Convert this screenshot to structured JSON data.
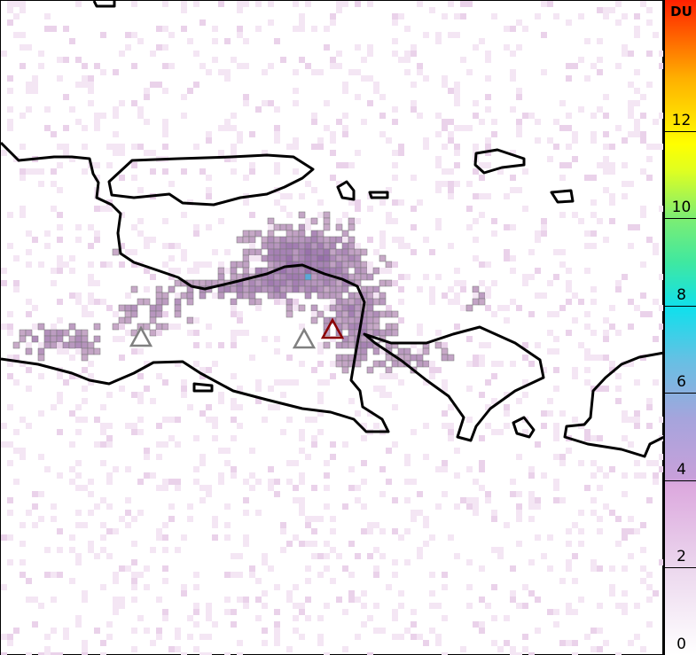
{
  "map": {
    "markers": [
      {
        "type": "volcano-triangle",
        "color": "#808080"
      },
      {
        "type": "volcano-triangle",
        "color": "#808080"
      },
      {
        "type": "volcano-triangle",
        "color": "#8b0000"
      }
    ],
    "coastline_color": "#000000"
  },
  "colorbar": {
    "unit": "DU",
    "min": 0,
    "max": 15,
    "ticks": [
      "0",
      "2",
      "4",
      "6",
      "8",
      "10",
      "12"
    ],
    "colors": [
      "#ffffff",
      "#ecd8ee",
      "#d49ad6",
      "#a6a4dc",
      "#66b6e2",
      "#10e0ec",
      "#7aee7a",
      "#30e860",
      "#ffff00",
      "#ffa000",
      "#ff2000"
    ]
  }
}
